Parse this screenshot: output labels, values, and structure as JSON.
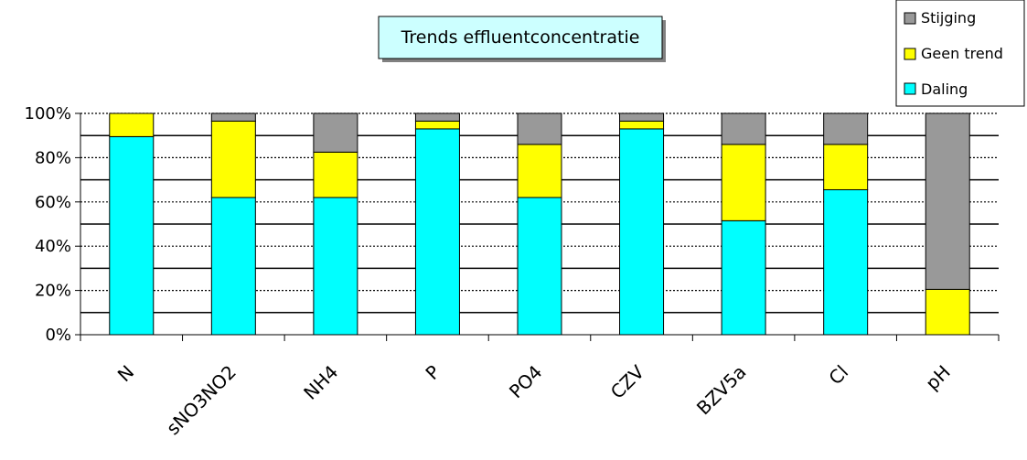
{
  "chart_data": {
    "type": "bar",
    "stacked": true,
    "percent_stacked": true,
    "title": "Trends effluentconcentratie",
    "categories": [
      "N",
      "sNO3NO2",
      "NH4",
      "P",
      "PO4",
      "CZV",
      "BZV5a",
      "Cl",
      "pH"
    ],
    "series": [
      {
        "name": "Daling",
        "color": "#00ffff",
        "values": [
          89.5,
          62,
          62,
          93,
          62,
          93,
          51.5,
          65.5,
          0
        ]
      },
      {
        "name": "Geen trend",
        "color": "#ffff00",
        "values": [
          10.5,
          34.5,
          20.5,
          3.5,
          24,
          3.5,
          34.5,
          20.5,
          20.5
        ]
      },
      {
        "name": "Stijging",
        "color": "#999999",
        "values": [
          0,
          3.5,
          17.5,
          3.5,
          14,
          3.5,
          14,
          14,
          79.5
        ]
      }
    ],
    "y_ticks": [
      "0%",
      "20%",
      "40%",
      "60%",
      "80%",
      "100%"
    ],
    "ylim": [
      0,
      100
    ],
    "grid": true,
    "legend_position": "top-right",
    "legend_order": [
      "Stijging",
      "Geen trend",
      "Daling"
    ]
  }
}
